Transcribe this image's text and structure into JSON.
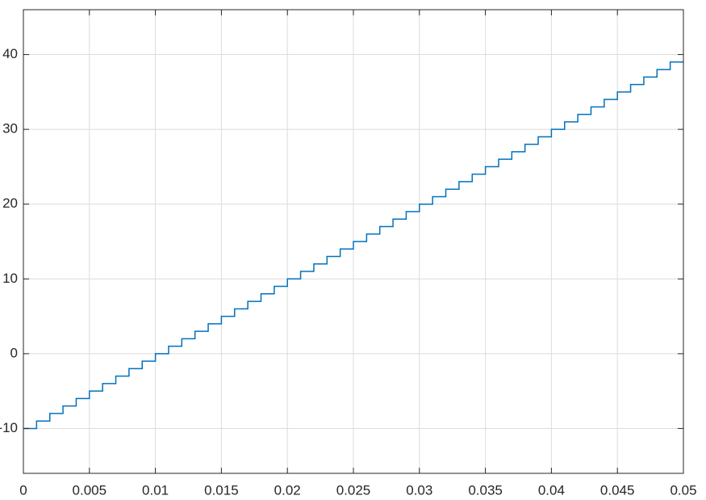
{
  "chart_data": {
    "type": "stairs",
    "x": [
      0,
      0.001,
      0.002,
      0.003,
      0.004,
      0.005,
      0.006,
      0.007,
      0.008,
      0.009,
      0.01,
      0.011,
      0.012,
      0.013,
      0.014,
      0.015,
      0.016,
      0.017,
      0.018,
      0.019,
      0.02,
      0.021,
      0.022,
      0.023,
      0.024,
      0.025,
      0.026,
      0.027,
      0.028,
      0.029,
      0.03,
      0.031,
      0.032,
      0.033,
      0.034,
      0.035,
      0.036,
      0.037,
      0.038,
      0.039,
      0.04,
      0.041,
      0.042,
      0.043,
      0.044,
      0.045,
      0.046,
      0.047,
      0.048,
      0.049,
      0.05
    ],
    "values": [
      -10,
      -9,
      -8,
      -7,
      -6,
      -5,
      -4,
      -3,
      -2,
      -1,
      0,
      1,
      2,
      3,
      4,
      5,
      6,
      7,
      8,
      9,
      10,
      11,
      12,
      13,
      14,
      15,
      16,
      17,
      18,
      19,
      20,
      21,
      22,
      23,
      24,
      25,
      26,
      27,
      28,
      29,
      30,
      31,
      32,
      33,
      34,
      35,
      36,
      37,
      38,
      39,
      39
    ],
    "color": "#0072bd",
    "xlim": [
      0,
      0.05
    ],
    "xticks": [
      0,
      0.005,
      0.01,
      0.015,
      0.02,
      0.025,
      0.03,
      0.035,
      0.04,
      0.045,
      0.05
    ],
    "ylim": [
      -16,
      46
    ],
    "yticks": [
      -10,
      0,
      10,
      20,
      30,
      40
    ],
    "grid": true
  }
}
